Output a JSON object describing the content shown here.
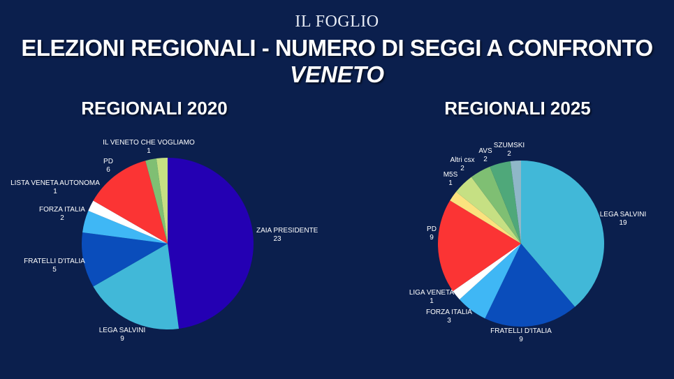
{
  "header": {
    "brand": "IL FOGLIO",
    "title": "ELEZIONI REGIONALI - NUMERO DI SEGGI A CONFRONTO",
    "subtitle": "VENETO"
  },
  "chart_data": [
    {
      "type": "pie",
      "title": "REGIONALI 2020",
      "slices": [
        {
          "label": "ZAIA PRESIDENTE",
          "value": 23,
          "color": "#2400b3"
        },
        {
          "label": "LEGA SALVINI",
          "value": 9,
          "color": "#41b8d8"
        },
        {
          "label": "FRATELLI D'ITALIA",
          "value": 5,
          "color": "#0a4dbb"
        },
        {
          "label": "FORZA ITALIA",
          "value": 2,
          "color": "#3fb7f5"
        },
        {
          "label": "LISTA VENETA AUTONOMA",
          "value": 1,
          "color": "#ffffff"
        },
        {
          "label": "PD",
          "value": 6,
          "color": "#fb3434"
        },
        {
          "label": "",
          "value": 1,
          "color": "#7fbf73"
        },
        {
          "label": "IL VENETO CHE VOGLIAMO",
          "value": 1,
          "color": "#c6e083"
        }
      ]
    },
    {
      "type": "pie",
      "title": "REGIONALI 2025",
      "slices": [
        {
          "label": "LEGA SALVINI",
          "value": 19,
          "color": "#41b8d8"
        },
        {
          "label": "FRATELLI D'ITALIA",
          "value": 9,
          "color": "#0a4dbb"
        },
        {
          "label": "FORZA ITALIA",
          "value": 3,
          "color": "#3fb7f5"
        },
        {
          "label": "LIGA VENETA",
          "value": 1,
          "color": "#ffffff"
        },
        {
          "label": "PD",
          "value": 9,
          "color": "#fb3434"
        },
        {
          "label": "M5S",
          "value": 1,
          "color": "#fbe27e"
        },
        {
          "label": "Altri csx",
          "value": 2,
          "color": "#c6e083"
        },
        {
          "label": "AVS",
          "value": 2,
          "color": "#7fbf73"
        },
        {
          "label": "SZUMSKI",
          "value": 2,
          "color": "#4fa87a"
        },
        {
          "label": "",
          "value": 1,
          "color": "#8fb7c8"
        }
      ]
    }
  ]
}
